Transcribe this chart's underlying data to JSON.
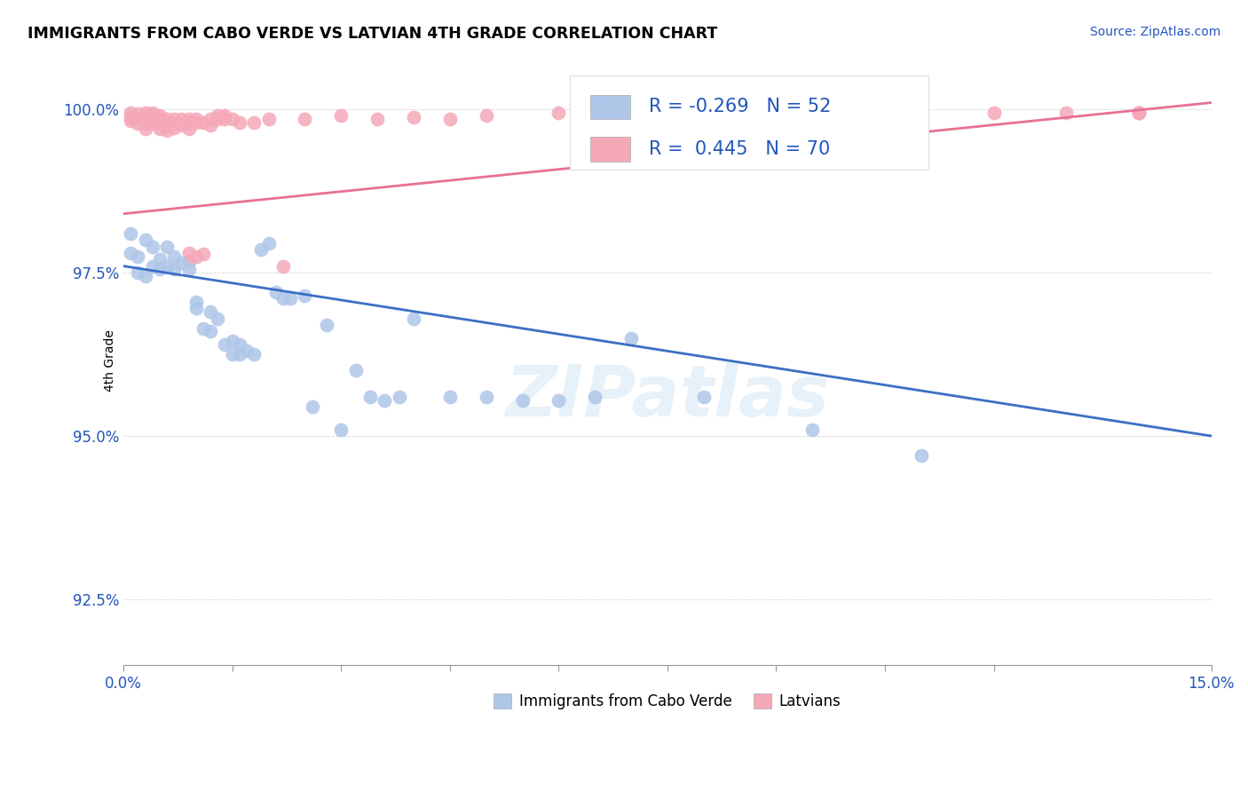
{
  "title": "IMMIGRANTS FROM CABO VERDE VS LATVIAN 4TH GRADE CORRELATION CHART",
  "source": "Source: ZipAtlas.com",
  "ylabel": "4th Grade",
  "ytick_labels": [
    "92.5%",
    "95.0%",
    "97.5%",
    "100.0%"
  ],
  "ytick_values": [
    0.925,
    0.95,
    0.975,
    1.0
  ],
  "xmin": 0.0,
  "xmax": 0.15,
  "ymin": 0.915,
  "ymax": 1.008,
  "legend_blue_label": "Immigrants from Cabo Verde",
  "legend_pink_label": "Latvians",
  "blue_R": "-0.269",
  "blue_N": "52",
  "pink_R": "0.445",
  "pink_N": "70",
  "blue_color": "#aec6e8",
  "pink_color": "#f4a8b8",
  "blue_line_color": "#3b6fc4",
  "pink_line_color": "#e87090",
  "watermark": "ZIPatlas",
  "blue_line_x0": 0.0,
  "blue_line_y0": 0.976,
  "blue_line_x1": 0.15,
  "blue_line_y1": 0.95,
  "pink_line_x0": 0.0,
  "pink_line_y0": 0.984,
  "pink_line_x1": 0.15,
  "pink_line_y1": 1.001,
  "blue_points_x": [
    0.001,
    0.001,
    0.002,
    0.002,
    0.003,
    0.003,
    0.004,
    0.004,
    0.005,
    0.005,
    0.006,
    0.006,
    0.007,
    0.007,
    0.008,
    0.009,
    0.01,
    0.01,
    0.011,
    0.012,
    0.012,
    0.013,
    0.014,
    0.015,
    0.015,
    0.016,
    0.016,
    0.017,
    0.018,
    0.019,
    0.02,
    0.021,
    0.022,
    0.023,
    0.025,
    0.026,
    0.028,
    0.03,
    0.032,
    0.034,
    0.036,
    0.038,
    0.04,
    0.045,
    0.05,
    0.055,
    0.06,
    0.065,
    0.07,
    0.08,
    0.095,
    0.11
  ],
  "blue_points_y": [
    0.981,
    0.978,
    0.9775,
    0.975,
    0.9745,
    0.98,
    0.979,
    0.976,
    0.977,
    0.9755,
    0.979,
    0.976,
    0.9775,
    0.9755,
    0.9765,
    0.9755,
    0.9705,
    0.9695,
    0.9665,
    0.969,
    0.966,
    0.968,
    0.964,
    0.9645,
    0.9625,
    0.964,
    0.9625,
    0.963,
    0.9625,
    0.9785,
    0.9795,
    0.972,
    0.971,
    0.971,
    0.9715,
    0.9545,
    0.967,
    0.951,
    0.96,
    0.956,
    0.9555,
    0.956,
    0.968,
    0.956,
    0.956,
    0.9555,
    0.9555,
    0.956,
    0.965,
    0.956,
    0.951,
    0.947
  ],
  "pink_points_x": [
    0.001,
    0.001,
    0.001,
    0.002,
    0.002,
    0.002,
    0.003,
    0.003,
    0.003,
    0.003,
    0.003,
    0.003,
    0.004,
    0.004,
    0.004,
    0.004,
    0.004,
    0.004,
    0.005,
    0.005,
    0.005,
    0.005,
    0.006,
    0.006,
    0.006,
    0.007,
    0.007,
    0.007,
    0.008,
    0.008,
    0.009,
    0.009,
    0.009,
    0.009,
    0.009,
    0.01,
    0.01,
    0.01,
    0.011,
    0.011,
    0.012,
    0.012,
    0.013,
    0.013,
    0.014,
    0.014,
    0.015,
    0.016,
    0.018,
    0.02,
    0.022,
    0.025,
    0.03,
    0.035,
    0.04,
    0.045,
    0.05,
    0.06,
    0.07,
    0.08,
    0.085,
    0.09,
    0.095,
    0.1,
    0.11,
    0.12,
    0.13,
    0.14,
    0.14,
    0.14
  ],
  "pink_points_y": [
    0.9995,
    0.9988,
    0.9982,
    0.9993,
    0.9985,
    0.9978,
    0.9995,
    0.999,
    0.9988,
    0.998,
    0.9978,
    0.997,
    0.9994,
    0.999,
    0.9988,
    0.9986,
    0.9982,
    0.9978,
    0.999,
    0.9985,
    0.998,
    0.997,
    0.9985,
    0.9975,
    0.9968,
    0.9985,
    0.998,
    0.9972,
    0.9985,
    0.9975,
    0.9985,
    0.998,
    0.997,
    0.978,
    0.9768,
    0.9985,
    0.998,
    0.9775,
    0.998,
    0.9778,
    0.9985,
    0.9975,
    0.999,
    0.9985,
    0.999,
    0.9985,
    0.9985,
    0.998,
    0.998,
    0.9985,
    0.976,
    0.9985,
    0.999,
    0.9985,
    0.9988,
    0.9985,
    0.999,
    0.9994,
    0.999,
    0.9994,
    0.9994,
    0.999,
    0.9994,
    0.9994,
    0.999,
    0.9994,
    0.9994,
    0.9994,
    0.9994,
    0.9994
  ]
}
